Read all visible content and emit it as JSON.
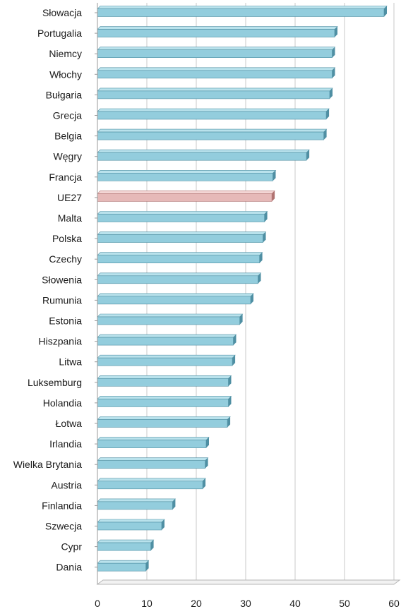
{
  "chart_data": {
    "type": "bar",
    "orientation": "horizontal",
    "title": "",
    "xlabel": "",
    "ylabel": "",
    "xlim": [
      0,
      60
    ],
    "x_ticks": [
      0,
      10,
      20,
      30,
      40,
      50,
      60
    ],
    "grid": true,
    "legend": "none",
    "categories": [
      "Słowacja",
      "Portugalia",
      "Niemcy",
      "Włochy",
      "Bułgaria",
      "Grecja",
      "Belgia",
      "Węgry",
      "Francja",
      "UE27",
      "Malta",
      "Polska",
      "Czechy",
      "Słowenia",
      "Rumunia",
      "Estonia",
      "Hiszpania",
      "Litwa",
      "Luksemburg",
      "Holandia",
      "Łotwa",
      "Irlandia",
      "Wielka Brytania",
      "Austria",
      "Finlandia",
      "Szwecja",
      "Cypr",
      "Dania"
    ],
    "values": [
      58,
      48,
      47.5,
      47.5,
      47,
      46.3,
      45.8,
      42.3,
      35.5,
      35.3,
      33.8,
      33.5,
      32.8,
      32.5,
      31,
      28.8,
      27.5,
      27.3,
      26.5,
      26.5,
      26.3,
      22,
      21.8,
      21.3,
      15.2,
      13,
      10.8,
      9.8
    ],
    "highlight_category": "UE27",
    "colors": {
      "bar": "#93cddd",
      "bar_top": "#b9e2ec",
      "bar_side": "#4f8fa3",
      "highlight": "#e6b9b8",
      "highlight_top": "#f3d6d5",
      "highlight_side": "#b07270"
    }
  }
}
